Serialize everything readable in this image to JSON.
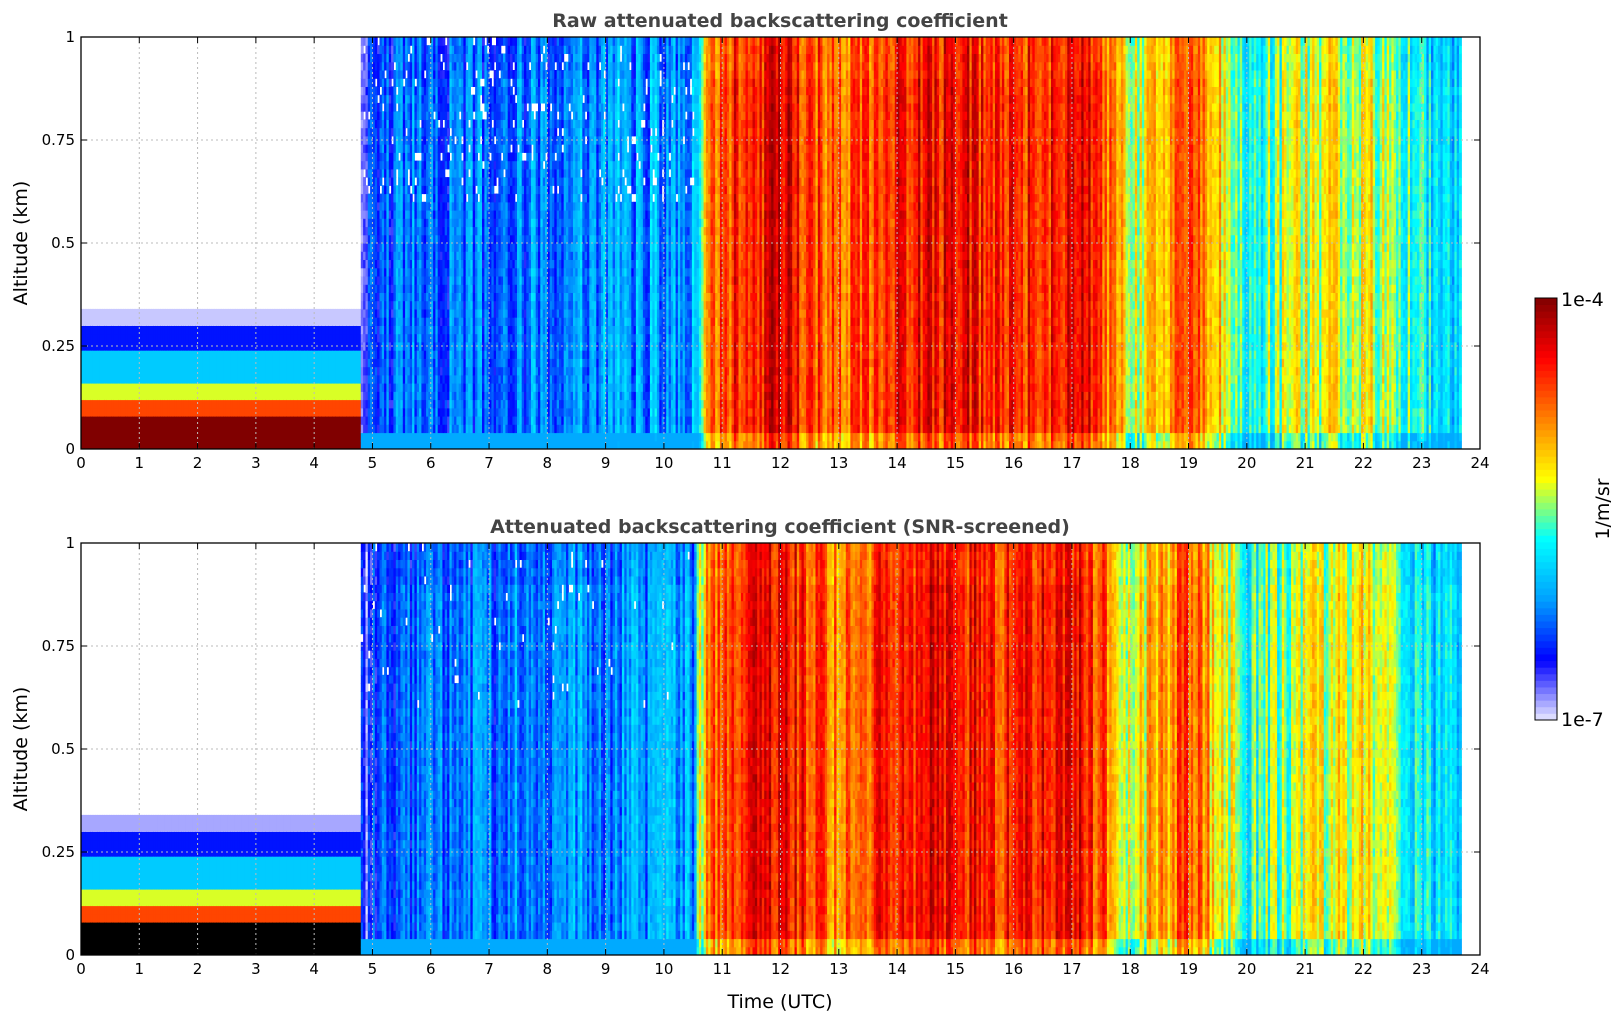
{
  "chart_data": [
    {
      "type": "heatmap",
      "title": "Raw attenuated backscattering coefficient",
      "xlabel": "",
      "ylabel": "Altitude (km)",
      "xlim": [
        0,
        24
      ],
      "ylim": [
        0,
        1
      ],
      "x_ticks": [
        0,
        1,
        2,
        3,
        4,
        5,
        6,
        7,
        8,
        9,
        10,
        11,
        12,
        13,
        14,
        15,
        16,
        17,
        18,
        19,
        20,
        21,
        22,
        23,
        24
      ],
      "x_tick_labels": [
        "0",
        "1",
        "2",
        "3",
        "4",
        "5",
        "6",
        "7",
        "8",
        "9",
        "10",
        "11",
        "12",
        "13",
        "14",
        "15",
        "16",
        "17",
        "18",
        "19",
        "20",
        "21",
        "22",
        "23",
        "24"
      ],
      "y_ticks": [
        0,
        0.25,
        0.5,
        0.75,
        1
      ],
      "y_tick_labels": [
        "0",
        "0.25",
        "0.5",
        "0.75",
        "1"
      ],
      "grid": true,
      "data_end_hour": 23.65,
      "screened": false,
      "intensity_profile": [
        {
          "t": 0.0,
          "level": 0.05
        },
        {
          "t": 4.8,
          "level": 0.1
        },
        {
          "t": 5.0,
          "level": 0.22
        },
        {
          "t": 6.0,
          "level": 0.24
        },
        {
          "t": 8.0,
          "level": 0.26
        },
        {
          "t": 10.5,
          "level": 0.3
        },
        {
          "t": 10.7,
          "level": 0.72
        },
        {
          "t": 11.2,
          "level": 0.82
        },
        {
          "t": 12.0,
          "level": 0.88
        },
        {
          "t": 13.0,
          "level": 0.72
        },
        {
          "t": 14.0,
          "level": 0.85
        },
        {
          "t": 15.0,
          "level": 0.86
        },
        {
          "t": 16.0,
          "level": 0.8
        },
        {
          "t": 17.2,
          "level": 0.88
        },
        {
          "t": 18.0,
          "level": 0.55
        },
        {
          "t": 19.0,
          "level": 0.78
        },
        {
          "t": 20.0,
          "level": 0.45
        },
        {
          "t": 21.0,
          "level": 0.55
        },
        {
          "t": 22.0,
          "level": 0.58
        },
        {
          "t": 23.0,
          "level": 0.4
        },
        {
          "t": 23.65,
          "level": 0.35
        }
      ]
    },
    {
      "type": "heatmap",
      "title": "Attenuated backscattering coefficient (SNR-screened)",
      "xlabel": "Time (UTC)",
      "ylabel": "Altitude (km)",
      "xlim": [
        0,
        24
      ],
      "ylim": [
        0,
        1
      ],
      "x_ticks": [
        0,
        1,
        2,
        3,
        4,
        5,
        6,
        7,
        8,
        9,
        10,
        11,
        12,
        13,
        14,
        15,
        16,
        17,
        18,
        19,
        20,
        21,
        22,
        23,
        24
      ],
      "x_tick_labels": [
        "0",
        "1",
        "2",
        "3",
        "4",
        "5",
        "6",
        "7",
        "8",
        "9",
        "10",
        "11",
        "12",
        "13",
        "14",
        "15",
        "16",
        "17",
        "18",
        "19",
        "20",
        "21",
        "22",
        "23",
        "24"
      ],
      "y_ticks": [
        0,
        0.25,
        0.5,
        0.75,
        1
      ],
      "y_tick_labels": [
        "0",
        "0.25",
        "0.5",
        "0.75",
        "1"
      ],
      "grid": true,
      "data_end_hour": 23.65,
      "screened": true,
      "intensity_profile": [
        {
          "t": 0.0,
          "level": 0.05
        },
        {
          "t": 4.8,
          "level": 0.1
        },
        {
          "t": 5.0,
          "level": 0.22
        },
        {
          "t": 6.0,
          "level": 0.24
        },
        {
          "t": 8.0,
          "level": 0.26
        },
        {
          "t": 10.5,
          "level": 0.3
        },
        {
          "t": 10.7,
          "level": 0.72
        },
        {
          "t": 11.2,
          "level": 0.82
        },
        {
          "t": 12.0,
          "level": 0.88
        },
        {
          "t": 13.0,
          "level": 0.72
        },
        {
          "t": 14.0,
          "level": 0.85
        },
        {
          "t": 15.0,
          "level": 0.86
        },
        {
          "t": 16.0,
          "level": 0.8
        },
        {
          "t": 17.2,
          "level": 0.88
        },
        {
          "t": 18.0,
          "level": 0.55
        },
        {
          "t": 19.0,
          "level": 0.78
        },
        {
          "t": 20.0,
          "level": 0.45
        },
        {
          "t": 21.0,
          "level": 0.55
        },
        {
          "t": 22.0,
          "level": 0.58
        },
        {
          "t": 23.0,
          "level": 0.4
        },
        {
          "t": 23.65,
          "level": 0.35
        }
      ]
    }
  ],
  "colorbar": {
    "label": "1/m/sr",
    "min_label": "1e-7",
    "max_label": "1e-4",
    "colormap": "jet",
    "colors": [
      "#e8e8ff",
      "#0000ff",
      "#00a0ff",
      "#00ffff",
      "#ffff00",
      "#ff8000",
      "#ff0000",
      "#800000"
    ]
  }
}
